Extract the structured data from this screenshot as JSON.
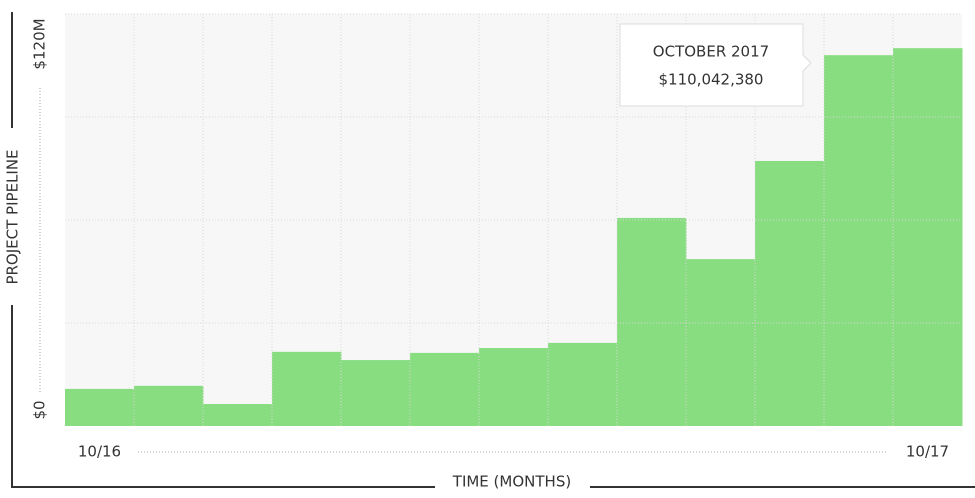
{
  "chart_data": {
    "type": "bar",
    "x_label": "TIME (MONTHS)",
    "y_label": "PROJECT PIPELINE",
    "categories": [
      "10/16",
      null,
      null,
      null,
      null,
      null,
      null,
      null,
      null,
      null,
      null,
      null,
      "10/17"
    ],
    "values": [
      10800000,
      11700000,
      6400000,
      21600000,
      19200000,
      21300000,
      22700000,
      24200000,
      60600000,
      48600000,
      77200000,
      108000000,
      110042380
    ],
    "color": "#88dd80",
    "ylim": [
      0,
      120000000
    ],
    "yticks": [
      {
        "value": 0,
        "label": "$0"
      },
      {
        "value": 30000000,
        "label": null
      },
      {
        "value": 60000000,
        "label": null
      },
      {
        "value": 90000000,
        "label": null
      },
      {
        "value": 120000000,
        "label": "$120M"
      }
    ],
    "grid": true,
    "tooltip": {
      "title": "OCTOBER 2017",
      "value": 110042380,
      "value_label": "$110,042,380"
    }
  }
}
